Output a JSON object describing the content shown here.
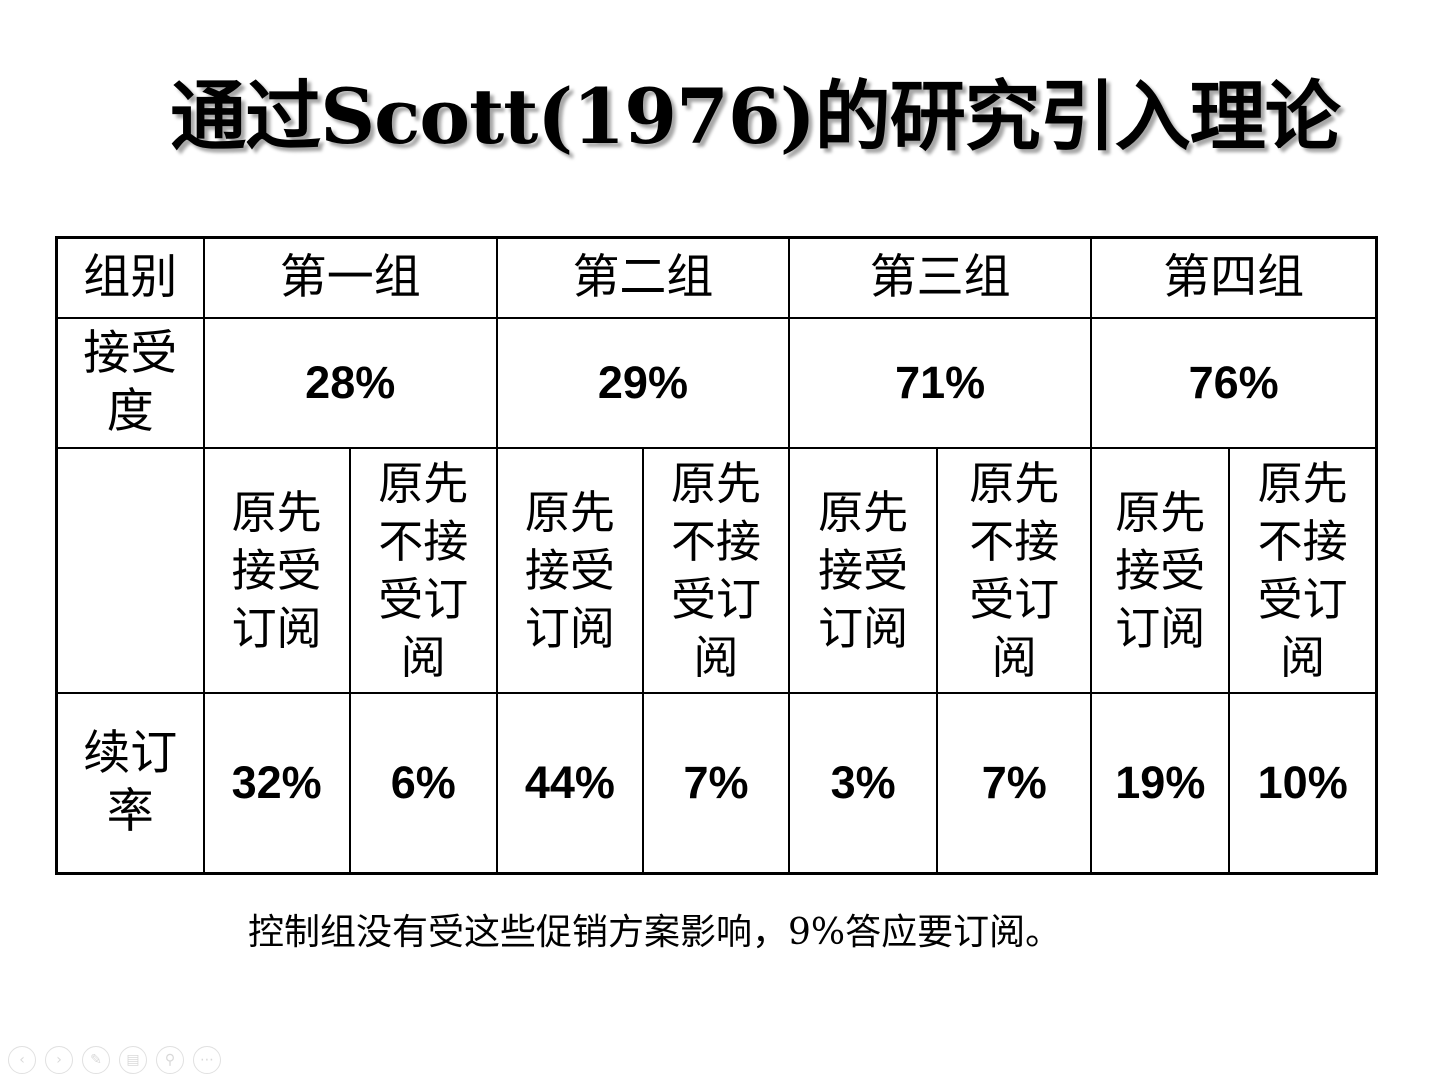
{
  "title": "通过Scott(1976)的研究引入理论",
  "table": {
    "row_labels": {
      "group": "组别",
      "acceptance": "接受度",
      "renewal": "续订率"
    },
    "groups": [
      "第一组",
      "第二组",
      "第三组",
      "第四组"
    ],
    "acceptance": [
      "28%",
      "29%",
      "71%",
      "76%"
    ],
    "subcolumns": {
      "previously_subscribed": "原先接受订阅",
      "previously_not_subscribed": "原先不接受订阅"
    },
    "renewal": [
      "32%",
      "6%",
      "44%",
      "7%",
      "3%",
      "7%",
      "19%",
      "10%"
    ]
  },
  "footnote": "控制组没有受这些促销方案影响，9%答应要订阅。",
  "nav_icons": [
    "prev-icon",
    "next-icon",
    "pen-icon",
    "slides-icon",
    "zoom-icon",
    "more-icon"
  ]
}
